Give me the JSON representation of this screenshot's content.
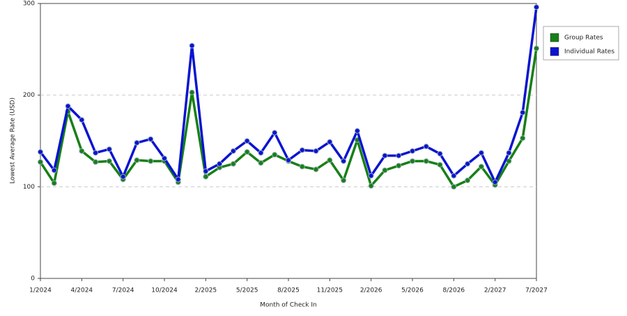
{
  "chart_data": {
    "type": "line",
    "x_label": "Month of Check In",
    "y_label": "Lowest Average Rate (USD)",
    "categories": [
      "1/2024",
      null,
      null,
      "4/2024",
      null,
      null,
      "7/2024",
      null,
      null,
      "10/2024",
      null,
      null,
      "2/2025",
      null,
      null,
      "5/2025",
      null,
      null,
      "8/2025",
      null,
      null,
      "11/2025",
      null,
      null,
      "2/2026",
      null,
      null,
      "5/2026",
      null,
      null,
      "8/2026",
      null,
      null,
      "2/2027",
      null,
      null,
      "7/2027"
    ],
    "series": [
      {
        "name": "Group Rates",
        "color": "#168016",
        "values": [
          127,
          104,
          182,
          139,
          127,
          128,
          108,
          129,
          128,
          128,
          105,
          203,
          111,
          121,
          125,
          138,
          126,
          135,
          128,
          122,
          119,
          129,
          107,
          151,
          101,
          118,
          123,
          128,
          128,
          124,
          100,
          107,
          122,
          102,
          128,
          153,
          251
        ]
      },
      {
        "name": "Individual Rates",
        "color": "#0a14d0",
        "values": [
          138,
          118,
          188,
          173,
          137,
          141,
          111,
          148,
          152,
          131,
          108,
          254,
          117,
          125,
          139,
          150,
          137,
          159,
          129,
          140,
          139,
          149,
          128,
          161,
          112,
          134,
          134,
          139,
          144,
          136,
          112,
          125,
          137,
          105,
          137,
          181,
          296
        ]
      }
    ],
    "ylim": [
      0,
      300
    ],
    "yticks": [
      0,
      100,
      200,
      300
    ],
    "grid": true,
    "legend": "right"
  }
}
